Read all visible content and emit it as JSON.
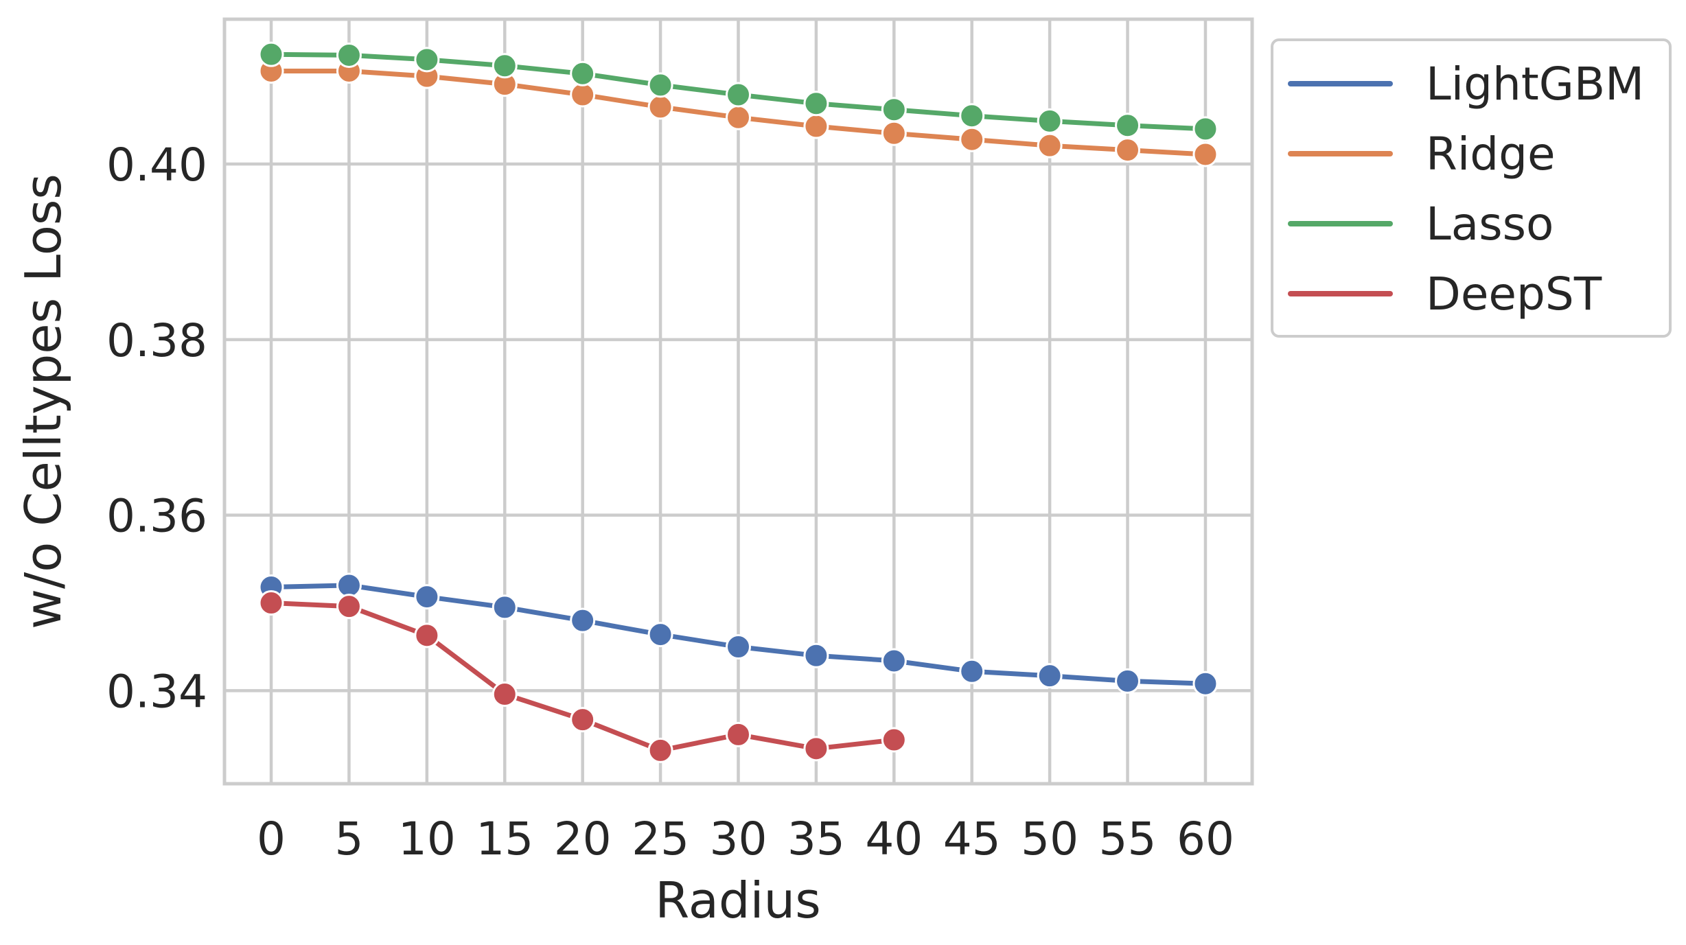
{
  "chart_data": {
    "type": "line",
    "xlabel": "Radius",
    "ylabel": "w/o Celltypes Loss",
    "x": [
      0,
      5,
      10,
      15,
      20,
      25,
      30,
      35,
      40,
      45,
      50,
      55,
      60
    ],
    "x_ticks": [
      "0",
      "5",
      "10",
      "15",
      "20",
      "25",
      "30",
      "35",
      "40",
      "45",
      "50",
      "55",
      "60"
    ],
    "y_ticks": [
      0.34,
      0.36,
      0.38,
      0.4
    ],
    "y_tick_labels": [
      "0.34",
      "0.36",
      "0.38",
      "0.40"
    ],
    "xlim": [
      -3,
      63
    ],
    "ylim": [
      0.3294,
      0.4165
    ],
    "grid": true,
    "legend_position": "outside-upper-right",
    "series": [
      {
        "name": "LightGBM",
        "color": "#4c72b0",
        "values": [
          0.3518,
          0.352,
          0.3507,
          0.3495,
          0.348,
          0.3464,
          0.345,
          0.344,
          0.3434,
          0.3422,
          0.3417,
          0.3411,
          0.3408
        ]
      },
      {
        "name": "Ridge",
        "color": "#dd8452",
        "values": [
          0.4106,
          0.4106,
          0.41,
          0.4091,
          0.4079,
          0.4065,
          0.4053,
          0.4043,
          0.4035,
          0.4028,
          0.4021,
          0.4016,
          0.4011
        ]
      },
      {
        "name": "Lasso",
        "color": "#55a868",
        "values": [
          0.4125,
          0.4124,
          0.4119,
          0.4112,
          0.4103,
          0.409,
          0.4079,
          0.4069,
          0.4062,
          0.4055,
          0.4049,
          0.4044,
          0.404
        ]
      },
      {
        "name": "DeepST",
        "color": "#c44e52",
        "values": [
          0.35,
          0.3496,
          0.3463,
          0.3396,
          0.3367,
          0.3332,
          0.335,
          0.3334,
          0.3344,
          null,
          null,
          null,
          null
        ]
      }
    ]
  }
}
